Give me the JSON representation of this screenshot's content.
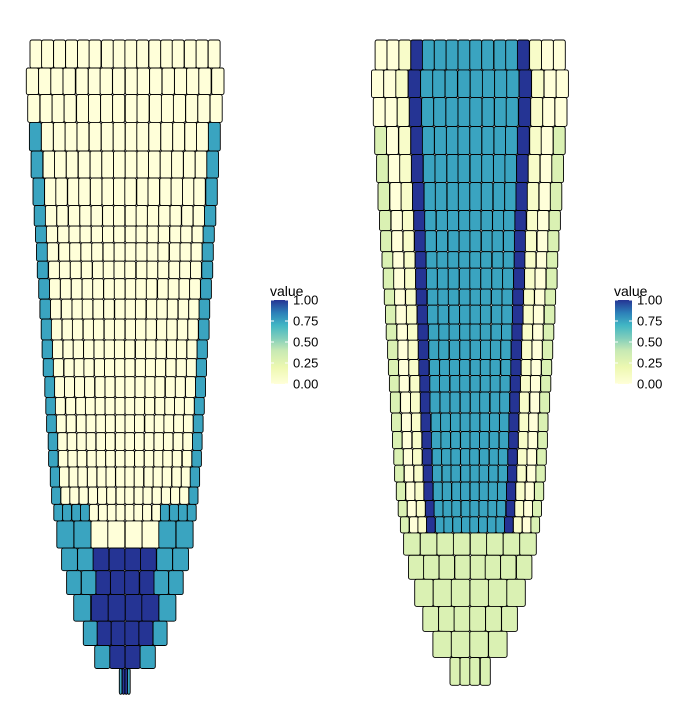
{
  "chart_data": [
    {
      "type": "heatmap",
      "panel": "left",
      "title": "",
      "description_values": {
        "all_other_cells": 0.0,
        "lateral_root_cap_cells": 0.75,
        "columella_cells": 1.0
      },
      "legend": {
        "title": "value",
        "ticks": [
          "1.00",
          "0.75",
          "0.50",
          "0.25",
          "0.00"
        ],
        "range": [
          0,
          1
        ],
        "placement": "right"
      }
    },
    {
      "type": "heatmap",
      "panel": "right",
      "title": "",
      "description_values": {
        "outer_tissue_upper": 0.0,
        "cortex_layers": 0.08,
        "epidermis_and_root_cap": 0.3,
        "stele_interior": 0.75,
        "pericycle_border_files": 1.0
      },
      "legend": {
        "title": "value",
        "ticks": [
          "1.00",
          "0.75",
          "0.50",
          "0.25",
          "0.00"
        ],
        "range": [
          0,
          1
        ],
        "placement": "right"
      }
    }
  ],
  "colors": {
    "scale": [
      "#ffffd9",
      "#c7e9b4",
      "#7fcdbb",
      "#41b6c4",
      "#2c7fb8",
      "#253494"
    ],
    "cell_border": "#000000"
  }
}
